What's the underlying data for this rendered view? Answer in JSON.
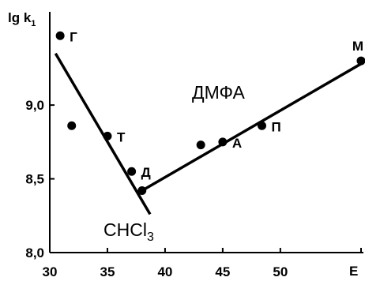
{
  "chart_data": {
    "type": "scatter",
    "title": "",
    "xlabel": "E",
    "ylabel": "lg k",
    "ylabel_subscript": "1",
    "xlim": [
      30,
      57
    ],
    "ylim": [
      8.0,
      9.6
    ],
    "x_ticks": [
      30,
      35,
      40,
      45,
      50
    ],
    "x_tick_labels": [
      "30",
      "35",
      "40",
      "45",
      "50"
    ],
    "y_ticks": [
      8.0,
      8.5,
      9.0
    ],
    "y_tick_labels": [
      "8,0",
      "8,5",
      "9,0"
    ],
    "grid": false,
    "legend": "none",
    "points": [
      {
        "x": 30.9,
        "y": 9.47,
        "label": "Г"
      },
      {
        "x": 31.9,
        "y": 8.86,
        "label": ""
      },
      {
        "x": 35.0,
        "y": 8.79,
        "label": "Т"
      },
      {
        "x": 37.1,
        "y": 8.55,
        "label": "Д"
      },
      {
        "x": 38.0,
        "y": 8.42,
        "label": ""
      },
      {
        "x": 43.1,
        "y": 8.73,
        "label": ""
      },
      {
        "x": 45.0,
        "y": 8.75,
        "label": "А"
      },
      {
        "x": 48.4,
        "y": 8.86,
        "label": "П"
      },
      {
        "x": 57.0,
        "y": 9.3,
        "label": "М"
      }
    ],
    "lines": [
      {
        "name": "CHCl",
        "name_subscript": "3",
        "x": [
          30.5,
          38.7
        ],
        "y": [
          9.35,
          8.26
        ]
      },
      {
        "name": "ДМФА",
        "x": [
          38.0,
          57.0
        ],
        "y": [
          8.42,
          9.28
        ]
      }
    ],
    "colors": {
      "marks": "#000000",
      "background": "#ffffff"
    }
  }
}
